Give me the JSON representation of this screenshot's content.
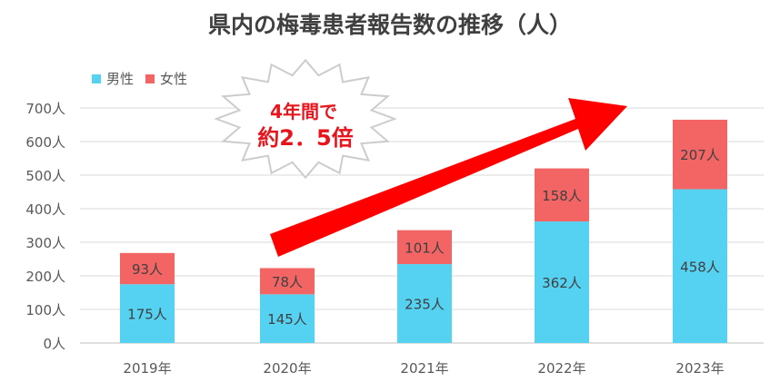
{
  "chart_data": {
    "type": "bar",
    "stacked": true,
    "title": "県内の梅毒患者報告数の推移（人）",
    "categories": [
      "2019年",
      "2020年",
      "2021年",
      "2022年",
      "2023年"
    ],
    "series": [
      {
        "name": "男性",
        "values": [
          175,
          145,
          235,
          362,
          458
        ],
        "color": "#55d1f2"
      },
      {
        "name": "女性",
        "values": [
          93,
          78,
          101,
          158,
          207
        ],
        "color": "#f36565"
      }
    ],
    "value_labels": {
      "男性": [
        "175人",
        "145人",
        "235人",
        "362人",
        "458人"
      ],
      "女性": [
        "93人",
        "78人",
        "101人",
        "158人",
        "207人"
      ]
    },
    "y_ticks": [
      "0人",
      "100人",
      "200人",
      "300人",
      "400人",
      "500人",
      "600人",
      "700人"
    ],
    "ylim": [
      0,
      700
    ],
    "grid": true,
    "legend_position": "top-left",
    "annotation": {
      "line1": "4年間で",
      "line2": "約2．5倍",
      "arrow_color": "#ff0000",
      "text_color": "#e8141c"
    }
  }
}
